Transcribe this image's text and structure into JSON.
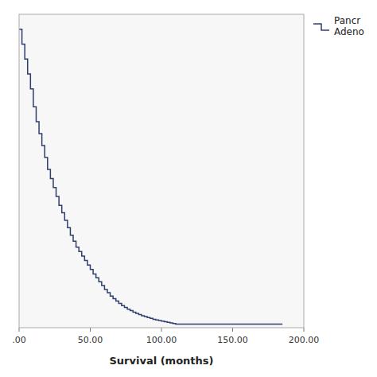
{
  "chart_data": {
    "type": "step",
    "xlabel": "Survival (months)",
    "x": [
      0,
      2,
      4,
      6,
      8,
      10,
      12,
      14,
      16,
      18,
      20,
      22,
      24,
      26,
      28,
      30,
      32,
      34,
      36,
      38,
      40,
      42,
      44,
      46,
      48,
      50,
      52,
      54,
      56,
      58,
      60,
      62,
      64,
      66,
      68,
      70,
      72,
      74,
      76,
      78,
      80,
      82,
      84,
      86,
      88,
      90,
      92,
      94,
      96,
      98,
      100,
      102,
      104,
      106,
      108,
      110,
      115,
      185
    ],
    "series": [
      {
        "name": "Pancr\nAdeno",
        "color": "#2e3f6e",
        "values": [
          1.0,
          0.95,
          0.9,
          0.85,
          0.8,
          0.74,
          0.69,
          0.65,
          0.61,
          0.57,
          0.53,
          0.5,
          0.47,
          0.44,
          0.41,
          0.385,
          0.36,
          0.335,
          0.31,
          0.29,
          0.27,
          0.255,
          0.24,
          0.225,
          0.21,
          0.195,
          0.18,
          0.167,
          0.154,
          0.141,
          0.128,
          0.117,
          0.106,
          0.097,
          0.089,
          0.081,
          0.074,
          0.068,
          0.062,
          0.057,
          0.052,
          0.048,
          0.044,
          0.04,
          0.037,
          0.034,
          0.031,
          0.028,
          0.026,
          0.024,
          0.022,
          0.02,
          0.018,
          0.016,
          0.014,
          0.012,
          0.012,
          0.012
        ]
      }
    ],
    "xlim": [
      0,
      200
    ],
    "ylim": [
      0.0,
      1.05
    ],
    "xticks": [
      {
        "value": 0,
        "label": ".00"
      },
      {
        "value": 50,
        "label": "50.00"
      },
      {
        "value": 100,
        "label": "100.00"
      },
      {
        "value": 150,
        "label": "150.00"
      },
      {
        "value": 200,
        "label": "200.00"
      }
    ],
    "tick_labels": "x",
    "legend": "right"
  }
}
